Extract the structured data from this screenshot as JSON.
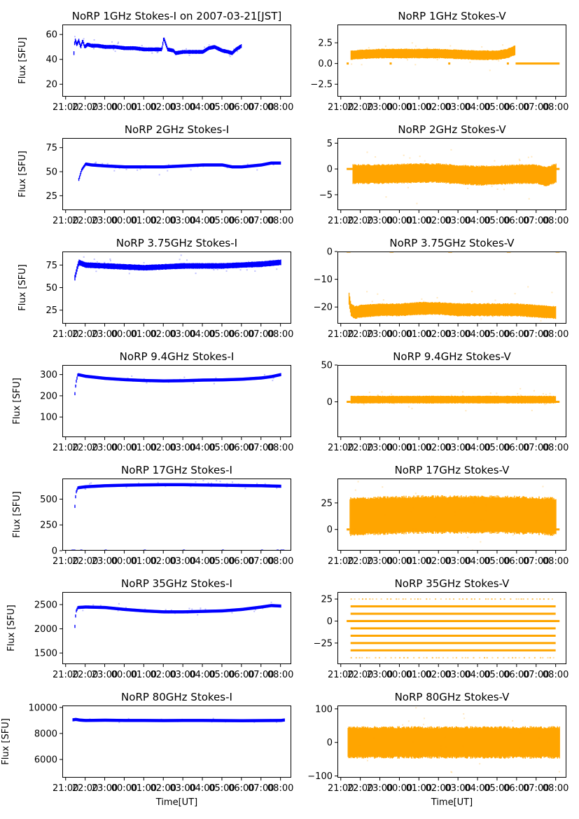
{
  "figure": {
    "xlabel": "Time[UT]",
    "x_tick_labels": [
      "21:00",
      "22:00",
      "23:00",
      "00:00",
      "01:00",
      "02:00",
      "03:00",
      "04:00",
      "05:00",
      "06:00",
      "07:00",
      "08:00"
    ],
    "colors": {
      "stokes_i": "#0000ff",
      "stokes_v": "#ffa500"
    }
  },
  "chart_data": [
    {
      "id": "1ghz-i",
      "type": "scatter",
      "title": "NoRP 1GHz Stokes-I on 2007-03-21[JST]",
      "xlabel": "",
      "ylabel": "Flux [SFU]",
      "ylim": [
        10,
        68
      ],
      "yticks": [
        20,
        40,
        60
      ],
      "ytick_labels": [
        "20",
        "40",
        "60"
      ],
      "series": [
        {
          "name": "Stokes-I",
          "color": "#0000ff",
          "x": [
            21.4,
            21.45,
            21.55,
            21.65,
            21.75,
            21.85,
            21.95,
            22.1,
            22.3,
            22.6,
            23.0,
            23.5,
            0.0,
            0.5,
            1.0,
            1.5,
            1.9,
            2.0,
            2.2,
            2.5,
            2.6,
            3.0,
            3.5,
            4.0,
            4.3,
            4.6,
            5.0,
            5.3,
            5.5,
            5.7,
            6.0
          ],
          "y": [
            45,
            56,
            52,
            55,
            50,
            55,
            50,
            52,
            51,
            51,
            50,
            50,
            49,
            49,
            48,
            48,
            48,
            57,
            48,
            47,
            45,
            46,
            46,
            46,
            49,
            50,
            47,
            46,
            45,
            48,
            51
          ],
          "spread": 1.5
        }
      ]
    },
    {
      "id": "1ghz-v",
      "type": "scatter",
      "title": "NoRP 1GHz Stokes-V",
      "xlabel": "",
      "ylabel": "",
      "ylim": [
        -4,
        4.7
      ],
      "yticks": [
        -2.5,
        0.0,
        2.5
      ],
      "ytick_labels": [
        "−2.5",
        "0.0",
        "2.5"
      ],
      "series": [
        {
          "name": "Stokes-V",
          "color": "#ffa500",
          "x": [
            21.5,
            22.0,
            23.0,
            0.0,
            1.0,
            2.0,
            3.0,
            4.0,
            5.0,
            5.5,
            5.9
          ],
          "y": [
            1.0,
            1.1,
            1.2,
            1.2,
            1.2,
            1.2,
            1.1,
            1.0,
            1.0,
            1.2,
            1.6
          ],
          "spread": 0.55,
          "zero_segments": [
            [
              21.3,
              21.4
            ],
            [
              23.5,
              23.6
            ],
            [
              2.5,
              2.6
            ],
            [
              5.5,
              5.6
            ],
            [
              5.95,
              8.2
            ]
          ]
        }
      ]
    },
    {
      "id": "2ghz-i",
      "type": "scatter",
      "title": "NoRP 2GHz Stokes-I",
      "xlabel": "",
      "ylabel": "Flux [SFU]",
      "ylim": [
        10,
        85
      ],
      "yticks": [
        25,
        50,
        75
      ],
      "ytick_labels": [
        "25",
        "50",
        "75"
      ],
      "series": [
        {
          "name": "Stokes-I",
          "color": "#0000ff",
          "x": [
            21.65,
            21.8,
            22.0,
            22.3,
            23.0,
            0.0,
            1.0,
            2.0,
            3.0,
            4.0,
            5.0,
            5.5,
            6.0,
            7.0,
            7.5,
            8.0
          ],
          "y": [
            42,
            52,
            58,
            57,
            56,
            55,
            55,
            55,
            56,
            57,
            57,
            55,
            55,
            57,
            59,
            59
          ],
          "spread": 1.5
        }
      ]
    },
    {
      "id": "2ghz-v",
      "type": "scatter",
      "title": "NoRP 2GHz Stokes-V",
      "xlabel": "",
      "ylabel": "",
      "ylim": [
        -8,
        6
      ],
      "yticks": [
        -5,
        0,
        5
      ],
      "ytick_labels": [
        "−5",
        "0",
        "5"
      ],
      "series": [
        {
          "name": "Stokes-V",
          "color": "#ffa500",
          "x": [
            21.6,
            23.0,
            1.0,
            2.0,
            3.0,
            4.0,
            5.0,
            6.0,
            7.0,
            7.5,
            8.0
          ],
          "y": [
            -1.0,
            -1.0,
            -0.8,
            -0.8,
            -1.1,
            -1.3,
            -1.2,
            -1.0,
            -1.0,
            -1.5,
            -0.8
          ],
          "spread": 1.8,
          "zero_segments": [
            [
              21.3,
              21.6
            ],
            [
              8.0,
              8.2
            ]
          ]
        }
      ]
    },
    {
      "id": "375ghz-i",
      "type": "scatter",
      "title": "NoRP 3.75GHz Stokes-I",
      "xlabel": "",
      "ylabel": "Flux [SFU]",
      "ylim": [
        10,
        90
      ],
      "yticks": [
        25,
        50,
        75
      ],
      "ytick_labels": [
        "25",
        "50",
        "75"
      ],
      "series": [
        {
          "name": "Stokes-I",
          "color": "#0000ff",
          "x": [
            21.45,
            21.55,
            21.65,
            22.0,
            23.0,
            0.0,
            1.0,
            2.0,
            3.0,
            4.0,
            5.0,
            6.0,
            7.0,
            8.0
          ],
          "y": [
            61,
            70,
            78,
            75,
            74,
            73,
            72,
            73,
            74,
            74,
            74,
            75,
            76,
            78
          ],
          "spread": 3
        }
      ]
    },
    {
      "id": "375ghz-v",
      "type": "scatter",
      "title": "NoRP 3.75GHz Stokes-V",
      "xlabel": "",
      "ylabel": "",
      "ylim": [
        -26,
        0
      ],
      "yticks": [
        -20,
        -10,
        0
      ],
      "ytick_labels": [
        "−20",
        "−10",
        "0"
      ],
      "series": [
        {
          "name": "Stokes-V",
          "color": "#ffa500",
          "x": [
            21.4,
            21.5,
            21.7,
            22.0,
            23.0,
            0.0,
            1.0,
            2.0,
            3.0,
            4.0,
            5.0,
            6.0,
            7.0,
            8.0
          ],
          "y": [
            -17,
            -21,
            -22,
            -21.5,
            -21,
            -21,
            -20.5,
            -20.5,
            -21,
            -21,
            -21,
            -21,
            -21.5,
            -22
          ],
          "spread": 2.2,
          "zero_segments": [
            [
              21.3,
              21.5
            ],
            [
              23.5,
              23.7
            ],
            [
              2.5,
              2.7
            ],
            [
              5.5,
              5.7
            ],
            [
              8.0,
              8.2
            ]
          ]
        }
      ]
    },
    {
      "id": "94ghz-i",
      "type": "scatter",
      "title": "NoRP 9.4GHz Stokes-I",
      "xlabel": "",
      "ylabel": "Flux [SFU]",
      "ylim": [
        5,
        345
      ],
      "yticks": [
        100,
        200,
        300
      ],
      "ytick_labels": [
        "100",
        "200",
        "300"
      ],
      "series": [
        {
          "name": "Stokes-I",
          "color": "#0000ff",
          "x": [
            21.45,
            21.5,
            21.6,
            22.0,
            23.0,
            0.0,
            1.0,
            2.0,
            3.0,
            4.0,
            5.0,
            6.0,
            7.0,
            7.5,
            8.0
          ],
          "y": [
            210,
            260,
            300,
            292,
            282,
            276,
            272,
            270,
            271,
            274,
            275,
            278,
            284,
            290,
            300
          ],
          "spread": 6
        }
      ]
    },
    {
      "id": "94ghz-v",
      "type": "scatter",
      "title": "NoRP 9.4GHz Stokes-V",
      "xlabel": "",
      "ylabel": "",
      "ylim": [
        -48,
        50
      ],
      "yticks": [
        0,
        50
      ],
      "ytick_labels": [
        "0",
        "50"
      ],
      "series": [
        {
          "name": "Stokes-V",
          "color": "#ffa500",
          "x": [
            21.5,
            23.0,
            1.0,
            3.0,
            5.0,
            7.0,
            8.0
          ],
          "y": [
            3,
            3,
            3,
            3,
            3,
            3,
            3
          ],
          "spread": 5,
          "zero_segments": [
            [
              21.3,
              21.5
            ],
            [
              8.0,
              8.2
            ]
          ]
        }
      ]
    },
    {
      "id": "17ghz-i",
      "type": "scatter",
      "title": "NoRP 17GHz Stokes-I",
      "xlabel": "",
      "ylabel": "Flux [SFU]",
      "ylim": [
        0,
        700
      ],
      "yticks": [
        0,
        250,
        500
      ],
      "ytick_labels": [
        "0",
        "250",
        "500"
      ],
      "series": [
        {
          "name": "Stokes-I",
          "color": "#0000ff",
          "x": [
            21.45,
            21.5,
            21.6,
            22.0,
            23.0,
            0.0,
            1.0,
            2.0,
            3.0,
            4.0,
            5.0,
            6.0,
            7.0,
            8.0
          ],
          "y": [
            430,
            560,
            610,
            620,
            630,
            635,
            638,
            640,
            640,
            637,
            635,
            632,
            630,
            625
          ],
          "spread": 12,
          "zero_segments": [
            [
              21.3,
              21.5
            ],
            [
              21.75,
              21.85
            ],
            [
              23.0,
              23.05
            ],
            [
              1.0,
              1.05
            ],
            [
              3.0,
              3.05
            ],
            [
              5.0,
              5.05
            ],
            [
              7.0,
              7.05
            ],
            [
              7.8,
              7.85
            ],
            [
              8.0,
              8.2
            ]
          ]
        }
      ]
    },
    {
      "id": "17ghz-v",
      "type": "scatter",
      "title": "NoRP 17GHz Stokes-V",
      "xlabel": "",
      "ylabel": "",
      "ylim": [
        -20,
        48
      ],
      "yticks": [
        0,
        25
      ],
      "ytick_labels": [
        "0",
        "25"
      ],
      "series": [
        {
          "name": "Stokes-V",
          "color": "#ffa500",
          "x": [
            21.45,
            23.0,
            1.0,
            3.0,
            5.0,
            7.0,
            8.0
          ],
          "y": [
            12,
            13,
            14,
            14,
            14,
            13,
            12
          ],
          "spread": 17,
          "zero_segments": [
            [
              21.3,
              21.45
            ],
            [
              8.0,
              8.2
            ]
          ]
        }
      ]
    },
    {
      "id": "35ghz-i",
      "type": "scatter",
      "title": "NoRP 35GHz Stokes-I",
      "xlabel": "",
      "ylabel": "Flux [SFU]",
      "ylim": [
        1270,
        2760
      ],
      "yticks": [
        1500,
        2000,
        2500
      ],
      "ytick_labels": [
        "1500",
        "2000",
        "2500"
      ],
      "series": [
        {
          "name": "Stokes-I",
          "color": "#0000ff",
          "x": [
            21.45,
            21.5,
            21.6,
            22.0,
            23.0,
            0.0,
            1.0,
            2.0,
            3.0,
            4.0,
            5.0,
            6.0,
            7.0,
            7.5,
            8.0
          ],
          "y": [
            2050,
            2350,
            2440,
            2450,
            2440,
            2400,
            2370,
            2350,
            2350,
            2360,
            2370,
            2400,
            2450,
            2480,
            2470
          ],
          "spread": 25
        }
      ]
    },
    {
      "id": "35ghz-v",
      "type": "scatter",
      "title": "NoRP 35GHz Stokes-V",
      "xlabel": "",
      "ylabel": "",
      "ylim": [
        -49,
        33
      ],
      "yticks": [
        -25,
        0,
        25
      ],
      "ytick_labels": [
        "−25",
        "0",
        "25"
      ],
      "series": [
        {
          "name": "Stokes-V",
          "color": "#ffa500",
          "levels": [
            16.7,
            8.3,
            0,
            -8.3,
            -16.7,
            -25.0,
            -33.3
          ],
          "sparse_levels": [
            25.0,
            -41.7
          ],
          "x_range": [
            21.5,
            8.0
          ],
          "zero_segments": [
            [
              21.3,
              8.2
            ]
          ]
        }
      ]
    },
    {
      "id": "80ghz-i",
      "type": "scatter",
      "title": "NoRP 80GHz Stokes-I",
      "xlabel": "Time[UT]",
      "ylabel": "Flux [SFU]",
      "ylim": [
        4600,
        10150
      ],
      "yticks": [
        6000,
        8000,
        10000
      ],
      "ytick_labels": [
        "6000",
        "8000",
        "10000"
      ],
      "series": [
        {
          "name": "Stokes-I",
          "color": "#0000ff",
          "x": [
            21.35,
            21.5,
            21.7,
            22.0,
            23.0,
            0.0,
            1.0,
            2.0,
            3.0,
            4.0,
            5.0,
            6.0,
            7.0,
            8.0,
            8.2
          ],
          "y": [
            9050,
            9080,
            9030,
            9000,
            9020,
            9000,
            9000,
            8990,
            9000,
            9000,
            8990,
            8980,
            8990,
            9000,
            9040
          ],
          "spread": 40
        }
      ]
    },
    {
      "id": "80ghz-v",
      "type": "scatter",
      "title": "NoRP 80GHz Stokes-V",
      "xlabel": "Time[UT]",
      "ylabel": "",
      "ylim": [
        -105,
        110
      ],
      "yticks": [
        -100,
        0,
        100
      ],
      "ytick_labels": [
        "−100",
        "0",
        "100"
      ],
      "series": [
        {
          "name": "Stokes-V",
          "color": "#ffa500",
          "x": [
            21.35,
            23.0,
            1.0,
            3.0,
            5.0,
            7.0,
            8.2
          ],
          "y": [
            0,
            0,
            0,
            0,
            0,
            0,
            0
          ],
          "spread": 45
        }
      ]
    }
  ]
}
